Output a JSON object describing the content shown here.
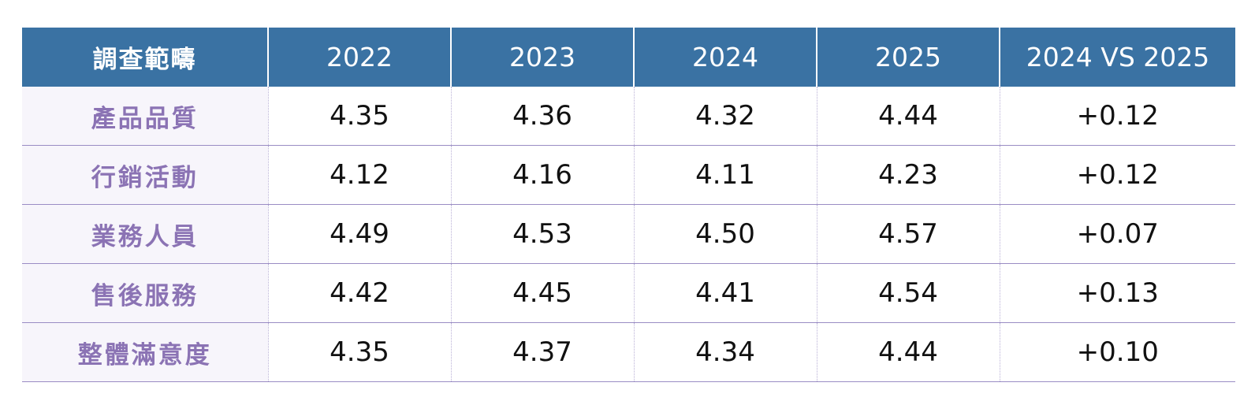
{
  "table": {
    "headers": [
      "調查範疇",
      "2022",
      "2023",
      "2024",
      "2025",
      "2024 VS 2025"
    ],
    "rows": [
      [
        "產品品質",
        "4.35",
        "4.36",
        "4.32",
        "4.44",
        "+0.12"
      ],
      [
        "行銷活動",
        "4.12",
        "4.16",
        "4.11",
        "4.23",
        "+0.12"
      ],
      [
        "業務人員",
        "4.49",
        "4.53",
        "4.50",
        "4.57",
        "+0.07"
      ],
      [
        "售後服務",
        "4.42",
        "4.45",
        "4.41",
        "4.54",
        "+0.13"
      ],
      [
        "整體滿意度",
        "4.35",
        "4.37",
        "4.34",
        "4.44",
        "+0.10"
      ]
    ]
  },
  "colors": {
    "header_bg": "#3a72a3",
    "header_text": "#ffffff",
    "category_text": "#8b73b4",
    "category_bg": "#f7f5fb",
    "row_border": "#9a8cc4"
  }
}
